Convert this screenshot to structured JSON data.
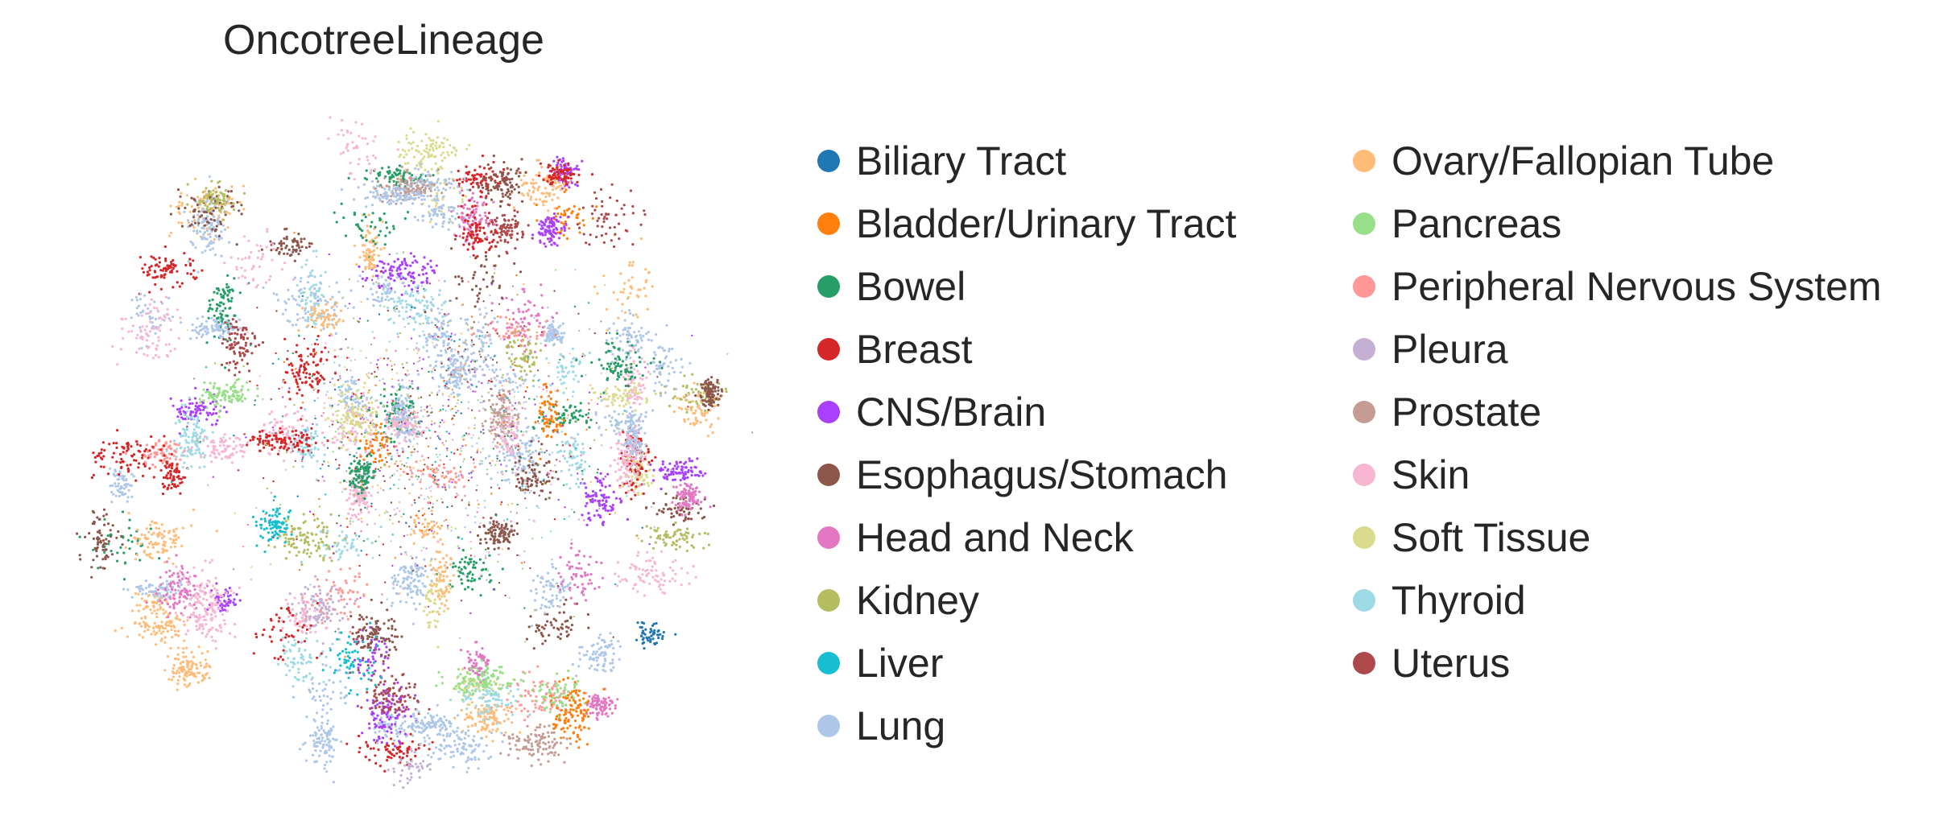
{
  "chart_data": {
    "type": "scatter",
    "title": "OncotreeLineage",
    "xlabel": "",
    "ylabel": "",
    "grid": false,
    "axes_visible": false,
    "legend_placement": "right",
    "legend_columns": 2,
    "legend": [
      {
        "label": "Biliary Tract",
        "color": "#1f77b4"
      },
      {
        "label": "Bladder/Urinary Tract",
        "color": "#ff7f0e"
      },
      {
        "label": "Bowel",
        "color": "#279e68"
      },
      {
        "label": "Breast",
        "color": "#d62728"
      },
      {
        "label": "CNS/Brain",
        "color": "#aa40fc"
      },
      {
        "label": "Esophagus/Stomach",
        "color": "#8c564b"
      },
      {
        "label": "Head and Neck",
        "color": "#e377c2"
      },
      {
        "label": "Kidney",
        "color": "#b5bd61"
      },
      {
        "label": "Liver",
        "color": "#17becf"
      },
      {
        "label": "Lung",
        "color": "#aec7e8"
      },
      {
        "label": "Ovary/Fallopian Tube",
        "color": "#ffbb78"
      },
      {
        "label": "Pancreas",
        "color": "#98df8a"
      },
      {
        "label": "Peripheral Nervous System",
        "color": "#ff9896"
      },
      {
        "label": "Pleura",
        "color": "#c5b0d5"
      },
      {
        "label": "Prostate",
        "color": "#c49c94"
      },
      {
        "label": "Skin",
        "color": "#f7b6d2"
      },
      {
        "label": "Soft Tissue",
        "color": "#dbdb8d"
      },
      {
        "label": "Thyroid",
        "color": "#9edae5"
      },
      {
        "label": "Uterus",
        "color": "#ad494a"
      }
    ]
  }
}
